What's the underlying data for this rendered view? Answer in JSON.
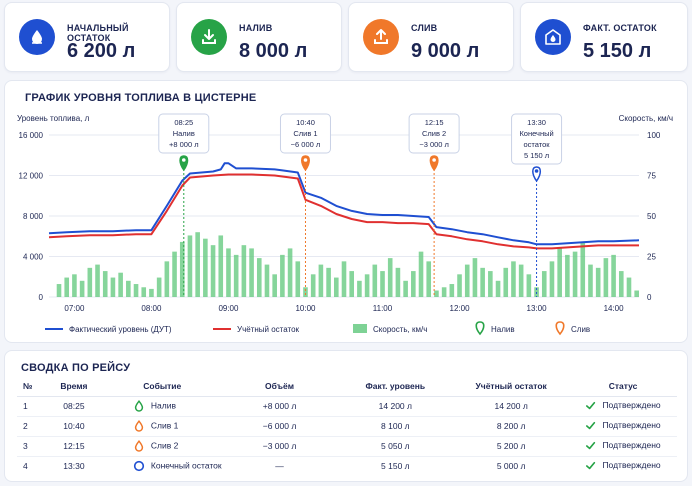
{
  "kpis": [
    {
      "label": "НАЧАЛЬНЫЙ ОСТАТОК",
      "value": "6 200 л",
      "color": "#1f4fd1",
      "icon": "drop-icon"
    },
    {
      "label": "НАЛИВ",
      "value": "8 000 л",
      "color": "#27a347",
      "icon": "download-icon"
    },
    {
      "label": "СЛИВ",
      "value": "9 000 л",
      "color": "#f0782a",
      "icon": "upload-icon"
    },
    {
      "label": "ФАКТ. ОСТАТОК",
      "value": "5 150 л",
      "color": "#1f4fd1",
      "icon": "tank-icon"
    }
  ],
  "chart": {
    "title": "ГРАФИК УРОВНЯ ТОПЛИВА В ЦИСТЕРНЕ",
    "ylabel_left": "Уровень топлива, л",
    "ylabel_right": "Скорость, км/ч",
    "annotations": [
      {
        "lines": [
          "08:25",
          "Налив",
          "+8 000 л"
        ],
        "color": "#27a347",
        "time": 8.42
      },
      {
        "lines": [
          "10:40",
          "Слив 1",
          "−6 000 л"
        ],
        "color": "#f0782a",
        "time": 10.0
      },
      {
        "lines": [
          "12:15",
          "Слив 2",
          "−3 000 л"
        ],
        "color": "#f0782a",
        "time": 11.67
      },
      {
        "lines": [
          "13:30",
          "Конечный",
          "остаток",
          "5 150 л"
        ],
        "color": "#1f4fd1",
        "time": 13.0
      }
    ],
    "legend": [
      {
        "label": "Фактический уровень (ДУТ)",
        "type": "line",
        "color": "#1f4fd1"
      },
      {
        "label": "Учётный остаток",
        "type": "line",
        "color": "#e03030"
      },
      {
        "label": "Скорость, км/ч",
        "type": "bar",
        "color": "#5ec77a"
      },
      {
        "label": "Налив",
        "type": "pin",
        "color": "#27a347"
      },
      {
        "label": "Слив",
        "type": "pin",
        "color": "#f0782a"
      }
    ]
  },
  "chart_data": {
    "type": "line",
    "title": "ГРАФИК УРОВНЯ ТОПЛИВА В ЦИСТЕРНЕ",
    "ylabel": "Уровень топлива, л",
    "y2label": "Скорость, км/ч",
    "xlim": [
      6.67,
      14.33
    ],
    "ylim": [
      0,
      16000
    ],
    "y2lim": [
      0,
      100
    ],
    "xticks": [
      "07:00",
      "08:00",
      "09:00",
      "10:00",
      "11:00",
      "12:00",
      "13:00",
      "14:00"
    ],
    "yticks": [
      "0",
      "4 000",
      "8 000",
      "12 000",
      "16 000"
    ],
    "y2ticks": [
      "0",
      "25",
      "50",
      "75",
      "100"
    ],
    "grid": true,
    "legend_position": "bottom",
    "series": [
      {
        "name": "Фактический уровень (ДУТ)",
        "color": "#1f4fd1",
        "x": [
          6.67,
          6.9,
          7.2,
          7.5,
          7.8,
          8.0,
          8.2,
          8.4,
          8.5,
          8.8,
          8.9,
          8.95,
          9.0,
          9.1,
          9.3,
          9.6,
          9.7,
          9.9,
          10.0,
          10.2,
          10.4,
          10.6,
          10.8,
          11.0,
          11.2,
          11.4,
          11.6,
          11.7,
          11.9,
          12.1,
          12.3,
          12.5,
          12.7,
          12.9,
          13.0,
          13.2,
          13.4,
          13.6,
          13.8,
          14.0,
          14.33
        ],
        "y": [
          6300,
          6400,
          6500,
          6500,
          6600,
          6600,
          9000,
          11500,
          12200,
          12400,
          12600,
          13200,
          13200,
          12700,
          12700,
          12600,
          12500,
          12300,
          10300,
          9800,
          9000,
          8500,
          8200,
          8100,
          8100,
          8000,
          7900,
          6900,
          6700,
          6400,
          6200,
          5900,
          5600,
          5400,
          5200,
          5200,
          5300,
          5400,
          5500,
          5500,
          5600
        ]
      },
      {
        "name": "Учётный остаток",
        "color": "#e03030",
        "x": [
          6.67,
          6.9,
          7.2,
          7.5,
          7.8,
          8.0,
          8.2,
          8.4,
          8.5,
          8.8,
          9.0,
          9.3,
          9.6,
          9.7,
          9.9,
          10.0,
          10.2,
          10.4,
          10.6,
          10.8,
          11.0,
          11.2,
          11.4,
          11.6,
          11.7,
          11.9,
          12.1,
          12.3,
          12.5,
          12.7,
          12.9,
          13.0,
          13.2,
          13.4,
          13.6,
          13.8,
          14.0,
          14.33
        ],
        "y": [
          5900,
          6000,
          6100,
          6100,
          6200,
          6200,
          8500,
          11000,
          11800,
          12000,
          12100,
          12100,
          12000,
          11900,
          11700,
          9600,
          9000,
          8200,
          7700,
          7400,
          7400,
          7300,
          7300,
          7200,
          6200,
          6000,
          5700,
          5500,
          5200,
          5000,
          4900,
          4800,
          4800,
          4900,
          5000,
          5100,
          5100,
          5100
        ]
      },
      {
        "name": "Скорость, км/ч",
        "color": "#5ec77a",
        "x": [
          6.8,
          6.9,
          7.0,
          7.1,
          7.2,
          7.3,
          7.4,
          7.5,
          7.6,
          7.7,
          7.8,
          7.9,
          8.0,
          8.1,
          8.2,
          8.3,
          8.4,
          8.5,
          8.6,
          8.7,
          8.8,
          8.9,
          9.0,
          9.1,
          9.2,
          9.3,
          9.4,
          9.5,
          9.6,
          9.7,
          9.8,
          9.9,
          10.0,
          10.1,
          10.2,
          10.3,
          10.4,
          10.5,
          10.6,
          10.7,
          10.8,
          10.9,
          11.0,
          11.1,
          11.2,
          11.3,
          11.4,
          11.5,
          11.6,
          11.7,
          11.8,
          11.9,
          12.0,
          12.1,
          12.2,
          12.3,
          12.4,
          12.5,
          12.6,
          12.7,
          12.8,
          12.9,
          13.0,
          13.1,
          13.2,
          13.3,
          13.4,
          13.5,
          13.6,
          13.7,
          13.8,
          13.9,
          14.0,
          14.1,
          14.2,
          14.3
        ],
        "y": [
          8,
          12,
          14,
          10,
          18,
          20,
          16,
          12,
          15,
          10,
          8,
          6,
          5,
          12,
          22,
          28,
          34,
          38,
          40,
          36,
          32,
          38,
          30,
          26,
          32,
          30,
          24,
          20,
          14,
          26,
          30,
          22,
          6,
          14,
          20,
          18,
          12,
          22,
          16,
          10,
          14,
          20,
          16,
          24,
          18,
          10,
          16,
          28,
          22,
          4,
          6,
          8,
          14,
          20,
          24,
          18,
          16,
          10,
          18,
          22,
          20,
          14,
          6,
          16,
          22,
          30,
          26,
          28,
          34,
          20,
          18,
          24,
          26,
          16,
          12,
          4
        ]
      }
    ]
  },
  "table": {
    "title": "СВОДКА ПО РЕЙСУ",
    "headers": [
      "№",
      "Время",
      "Событие",
      "Объём",
      "Факт. уровень",
      "Учётный остаток",
      "Статус"
    ],
    "rows": [
      {
        "no": "1",
        "time": "08:25",
        "event": "Налив",
        "event_icon": "drop-icon",
        "event_color": "#27a347",
        "volume": "+8 000 л",
        "fact": "14 200 л",
        "acc": "14 200 л",
        "status": "Подтверждено"
      },
      {
        "no": "2",
        "time": "10:40",
        "event": "Слив 1",
        "event_icon": "drop-icon",
        "event_color": "#f0782a",
        "volume": "−6 000 л",
        "fact": "8 100 л",
        "acc": "8 200 л",
        "status": "Подтверждено"
      },
      {
        "no": "3",
        "time": "12:15",
        "event": "Слив 2",
        "event_icon": "drop-icon",
        "event_color": "#f0782a",
        "volume": "−3 000 л",
        "fact": "5 050 л",
        "acc": "5 200 л",
        "status": "Подтверждено"
      },
      {
        "no": "4",
        "time": "13:30",
        "event": "Конечный остаток",
        "event_icon": "circle-icon",
        "event_color": "#1f4fd1",
        "volume": "—",
        "fact": "5 150 л",
        "acc": "5 000 л",
        "status": "Подтверждено"
      }
    ],
    "status_color": "#27a347"
  }
}
